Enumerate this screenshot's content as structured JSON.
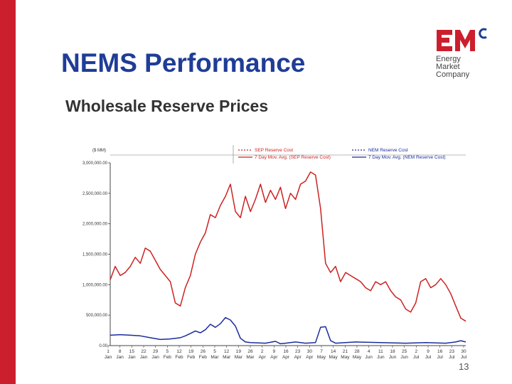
{
  "slide": {
    "title": "NEMS Performance",
    "subtitle": "Wholesale Reserve Prices",
    "page_number": "13",
    "accent_color": "#cc1f2d",
    "title_color": "#1f3d96"
  },
  "logo": {
    "mark_letters": "EMC",
    "lines": [
      "Energy",
      "Market",
      "Company"
    ]
  },
  "chart_data": {
    "type": "line",
    "unit_label": "($ MM)",
    "ylim": [
      0,
      3000000
    ],
    "yticks": [
      0,
      500000,
      1000000,
      1500000,
      2000000,
      2500000,
      3000000
    ],
    "ytick_labels": [
      "0.00",
      "500,000.00",
      "1,000,000.00",
      "1,500,000.00",
      "2,000,000.00",
      "2,500,000.00",
      "3,000,000.00"
    ],
    "x_day_labels": [
      "1",
      "8",
      "15",
      "22",
      "29",
      "5",
      "12",
      "19",
      "26",
      "5",
      "12",
      "19",
      "26",
      "2",
      "9",
      "16",
      "23",
      "30",
      "7",
      "14",
      "21",
      "28",
      "4",
      "11",
      "18",
      "25",
      "2",
      "9",
      "16",
      "23",
      "30"
    ],
    "x_month_labels": [
      "Jan",
      "Jan",
      "Jan",
      "Jan",
      "Jan",
      "Feb",
      "Feb",
      "Feb",
      "Feb",
      "Mar",
      "Mar",
      "Mar",
      "Mar",
      "Apr",
      "Apr",
      "Apr",
      "Apr",
      "Apr",
      "May",
      "May",
      "May",
      "May",
      "Jun",
      "Jun",
      "Jun",
      "Jun",
      "Jul",
      "Jul",
      "Jul",
      "Jul",
      "Jul"
    ],
    "grid": false,
    "legend_placement": "top",
    "legend": [
      {
        "label": "SEP Reserve Cost",
        "color": "#cc2222",
        "style": "dashed"
      },
      {
        "label": "7 Day Mov. Avg. (SEP Reserve Cost)",
        "color": "#cc2222",
        "style": "solid"
      },
      {
        "label": "NEM Reserve Cost",
        "color": "#1a2c9c",
        "style": "dashed"
      },
      {
        "label": "7 Day Mov. Avg. (NEM Reserve Cost)",
        "color": "#1a2c9c",
        "style": "solid"
      }
    ],
    "series": [
      {
        "name": "7 Day Mov. Avg. (SEP Reserve Cost)",
        "color": "#cc2222",
        "points": [
          [
            1,
            1080000
          ],
          [
            2,
            1300000
          ],
          [
            3,
            1150000
          ],
          [
            4,
            1200000
          ],
          [
            5,
            1300000
          ],
          [
            6,
            1450000
          ],
          [
            7,
            1350000
          ],
          [
            8,
            1600000
          ],
          [
            9,
            1550000
          ],
          [
            10,
            1400000
          ],
          [
            11,
            1250000
          ],
          [
            12,
            1150000
          ],
          [
            13,
            1050000
          ],
          [
            14,
            700000
          ],
          [
            15,
            650000
          ],
          [
            16,
            950000
          ],
          [
            17,
            1150000
          ],
          [
            18,
            1500000
          ],
          [
            19,
            1700000
          ],
          [
            20,
            1850000
          ],
          [
            21,
            2150000
          ],
          [
            22,
            2100000
          ],
          [
            23,
            2300000
          ],
          [
            24,
            2450000
          ],
          [
            25,
            2650000
          ],
          [
            26,
            2200000
          ],
          [
            27,
            2100000
          ],
          [
            28,
            2450000
          ],
          [
            29,
            2200000
          ],
          [
            30,
            2400000
          ],
          [
            31,
            2650000
          ],
          [
            32,
            2350000
          ],
          [
            33,
            2550000
          ],
          [
            34,
            2400000
          ],
          [
            35,
            2600000
          ],
          [
            36,
            2250000
          ],
          [
            37,
            2500000
          ],
          [
            38,
            2400000
          ],
          [
            39,
            2650000
          ],
          [
            40,
            2700000
          ],
          [
            41,
            2850000
          ],
          [
            42,
            2800000
          ],
          [
            43,
            2250000
          ],
          [
            44,
            1350000
          ],
          [
            45,
            1200000
          ],
          [
            46,
            1300000
          ],
          [
            47,
            1050000
          ],
          [
            48,
            1200000
          ],
          [
            49,
            1150000
          ],
          [
            50,
            1100000
          ],
          [
            51,
            1050000
          ],
          [
            52,
            950000
          ],
          [
            53,
            900000
          ],
          [
            54,
            1050000
          ],
          [
            55,
            1000000
          ],
          [
            56,
            1050000
          ],
          [
            57,
            900000
          ],
          [
            58,
            800000
          ],
          [
            59,
            750000
          ],
          [
            60,
            600000
          ],
          [
            61,
            550000
          ],
          [
            62,
            700000
          ],
          [
            63,
            1050000
          ],
          [
            64,
            1100000
          ],
          [
            65,
            950000
          ],
          [
            66,
            1000000
          ],
          [
            67,
            1100000
          ],
          [
            68,
            1000000
          ],
          [
            69,
            850000
          ],
          [
            70,
            650000
          ],
          [
            71,
            450000
          ],
          [
            72,
            400000
          ]
        ]
      },
      {
        "name": "7 Day Mov. Avg. (NEM Reserve Cost)",
        "color": "#1a2c9c",
        "points": [
          [
            1,
            170000
          ],
          [
            3,
            180000
          ],
          [
            5,
            170000
          ],
          [
            7,
            160000
          ],
          [
            9,
            130000
          ],
          [
            11,
            100000
          ],
          [
            13,
            110000
          ],
          [
            15,
            130000
          ],
          [
            16,
            160000
          ],
          [
            17,
            200000
          ],
          [
            18,
            240000
          ],
          [
            19,
            210000
          ],
          [
            20,
            260000
          ],
          [
            21,
            350000
          ],
          [
            22,
            300000
          ],
          [
            23,
            360000
          ],
          [
            24,
            460000
          ],
          [
            25,
            420000
          ],
          [
            26,
            320000
          ],
          [
            27,
            120000
          ],
          [
            28,
            60000
          ],
          [
            29,
            50000
          ],
          [
            32,
            40000
          ],
          [
            34,
            70000
          ],
          [
            35,
            30000
          ],
          [
            36,
            40000
          ],
          [
            38,
            60000
          ],
          [
            40,
            40000
          ],
          [
            42,
            50000
          ],
          [
            43,
            300000
          ],
          [
            44,
            310000
          ],
          [
            45,
            80000
          ],
          [
            46,
            40000
          ],
          [
            50,
            60000
          ],
          [
            55,
            50000
          ],
          [
            60,
            40000
          ],
          [
            64,
            50000
          ],
          [
            68,
            40000
          ],
          [
            70,
            60000
          ],
          [
            71,
            80000
          ],
          [
            72,
            60000
          ]
        ]
      }
    ]
  }
}
